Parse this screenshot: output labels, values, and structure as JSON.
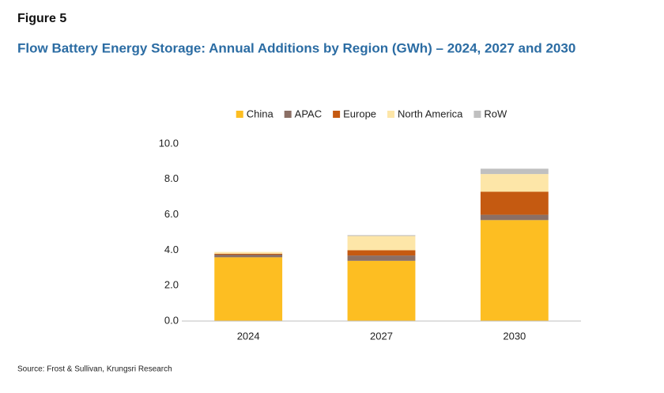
{
  "chart_data": {
    "type": "stacked_bar",
    "figure_label": "Figure 5",
    "title": "Flow Battery Energy Storage: Annual Additions by Region (GWh) – 2024, 2027 and 2030",
    "source": "Source: Frost & Sullivan, Krungsri Research",
    "categories": [
      "2024",
      "2027",
      "2030"
    ],
    "series": [
      {
        "name": "China",
        "color": "#fdbe22",
        "values": [
          3.6,
          3.4,
          5.7
        ]
      },
      {
        "name": "APAC",
        "color": "#8b6f65",
        "values": [
          0.15,
          0.3,
          0.3
        ]
      },
      {
        "name": "Europe",
        "color": "#c55a11",
        "values": [
          0.05,
          0.3,
          1.3
        ]
      },
      {
        "name": "North America",
        "color": "#fde6a8",
        "values": [
          0.1,
          0.8,
          1.0
        ]
      },
      {
        "name": "RoW",
        "color": "#c0c0c0",
        "values": [
          0,
          0.05,
          0.3
        ]
      }
    ],
    "ylim": [
      0,
      10
    ],
    "yticks": [
      {
        "value": 0,
        "label": "0.0"
      },
      {
        "value": 2,
        "label": "2.0"
      },
      {
        "value": 4,
        "label": "4.0"
      },
      {
        "value": 6,
        "label": "6.0"
      },
      {
        "value": 8,
        "label": "8.0"
      },
      {
        "value": 10,
        "label": "10.0"
      }
    ],
    "legend": "top"
  }
}
